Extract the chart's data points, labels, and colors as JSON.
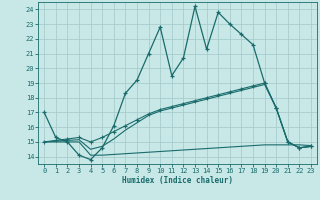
{
  "xlabel": "Humidex (Indice chaleur)",
  "background_color": "#c8e8e8",
  "grid_color": "#a8cccc",
  "line_color": "#1a6b6b",
  "xlim": [
    -0.5,
    23.5
  ],
  "ylim": [
    13.5,
    24.5
  ],
  "xticks": [
    0,
    1,
    2,
    3,
    4,
    5,
    6,
    7,
    8,
    9,
    10,
    11,
    12,
    13,
    14,
    15,
    16,
    17,
    18,
    19,
    20,
    21,
    22,
    23
  ],
  "yticks": [
    14,
    15,
    16,
    17,
    18,
    19,
    20,
    21,
    22,
    23,
    24
  ],
  "line1_x": [
    0,
    1,
    2,
    3,
    4,
    5,
    6,
    7,
    8,
    9,
    10,
    11,
    12,
    13,
    14,
    15,
    16,
    17,
    18,
    19,
    20,
    21,
    22,
    23
  ],
  "line1_y": [
    17.0,
    15.3,
    15.0,
    14.1,
    13.8,
    14.6,
    16.1,
    18.3,
    19.2,
    21.0,
    22.8,
    19.5,
    20.7,
    24.2,
    21.3,
    23.8,
    23.0,
    22.3,
    21.6,
    19.0,
    17.3,
    15.0,
    14.6,
    14.7
  ],
  "line2_x": [
    0,
    1,
    2,
    3,
    4,
    5,
    6,
    7,
    8,
    9,
    10,
    11,
    12,
    13,
    14,
    15,
    16,
    17,
    18,
    19,
    20,
    21,
    22,
    23
  ],
  "line2_y": [
    15.0,
    15.0,
    15.0,
    15.0,
    14.1,
    14.1,
    14.15,
    14.2,
    14.25,
    14.3,
    14.35,
    14.4,
    14.45,
    14.5,
    14.55,
    14.6,
    14.65,
    14.7,
    14.75,
    14.8,
    14.8,
    14.8,
    14.8,
    14.75
  ],
  "line3_x": [
    0,
    1,
    2,
    3,
    4,
    5,
    6,
    7,
    8,
    9,
    10,
    11,
    12,
    13,
    14,
    15,
    16,
    17,
    18,
    19,
    20,
    21,
    22,
    23
  ],
  "line3_y": [
    15.0,
    15.1,
    15.2,
    15.3,
    15.0,
    15.3,
    15.7,
    16.1,
    16.5,
    16.9,
    17.2,
    17.4,
    17.6,
    17.8,
    18.0,
    18.2,
    18.4,
    18.6,
    18.8,
    19.0,
    17.3,
    15.0,
    14.6,
    14.7
  ],
  "line4_x": [
    0,
    1,
    2,
    3,
    4,
    5,
    6,
    7,
    8,
    9,
    10,
    11,
    12,
    13,
    14,
    15,
    16,
    17,
    18,
    19,
    20,
    21,
    22,
    23
  ],
  "line4_y": [
    15.0,
    15.05,
    15.1,
    15.15,
    14.5,
    14.7,
    15.2,
    15.8,
    16.3,
    16.8,
    17.1,
    17.3,
    17.5,
    17.7,
    17.9,
    18.1,
    18.3,
    18.5,
    18.7,
    18.9,
    17.3,
    15.0,
    14.6,
    14.7
  ],
  "figw": 3.2,
  "figh": 2.0,
  "dpi": 100
}
